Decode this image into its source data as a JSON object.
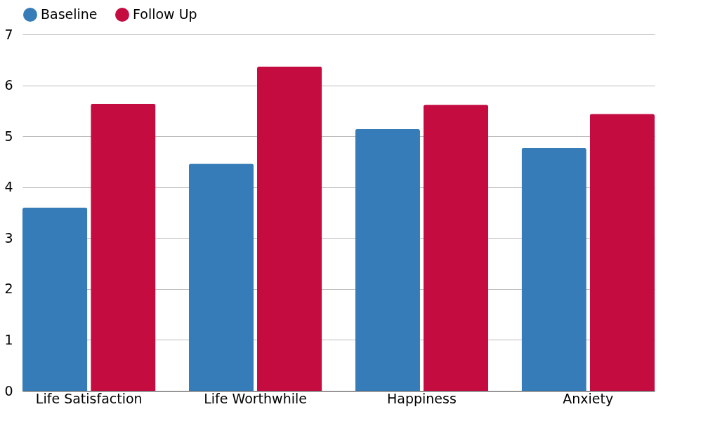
{
  "chart_data": {
    "type": "bar",
    "categories": [
      "Life Satisfaction",
      "Life Worthwhile",
      "Happiness",
      "Anxiety"
    ],
    "series": [
      {
        "name": "Baseline",
        "color": "#357cb9",
        "values": [
          3.6,
          4.46,
          5.14,
          4.77
        ]
      },
      {
        "name": "Follow Up",
        "color": "#c40c41",
        "values": [
          5.64,
          6.37,
          5.62,
          5.44
        ]
      }
    ],
    "ylim": [
      0,
      7
    ],
    "yticks": [
      0,
      1,
      2,
      3,
      4,
      5,
      6,
      7
    ],
    "grid": "y",
    "legend": "top"
  }
}
